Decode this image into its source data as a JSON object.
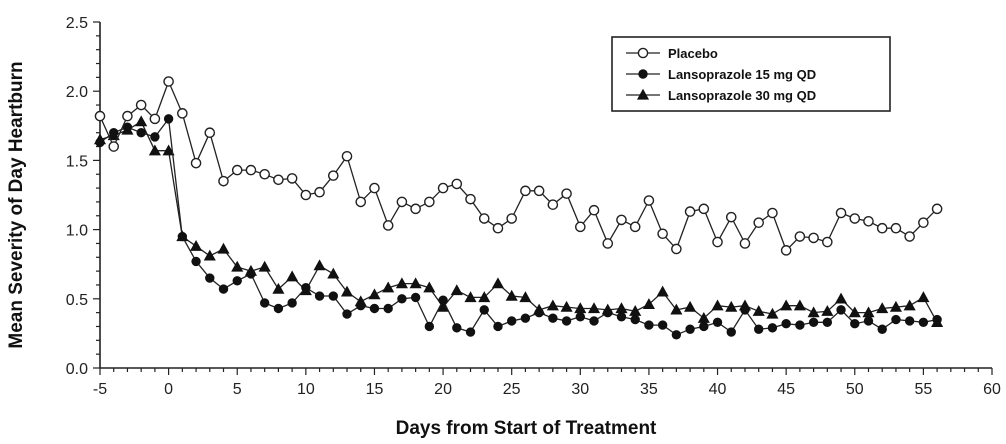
{
  "chart_data": {
    "type": "line",
    "title": "",
    "xlabel": "Days from Start of Treatment",
    "ylabel": "Mean Severity of Day Heartburn",
    "xlim": [
      -5,
      60
    ],
    "ylim": [
      0.0,
      2.5
    ],
    "xticks": [
      "-5",
      "0",
      "5",
      "10",
      "15",
      "20",
      "25",
      "30",
      "35",
      "40",
      "45",
      "50",
      "55",
      "60"
    ],
    "yticks": [
      "0.0",
      "0.5",
      "1.0",
      "1.5",
      "2.0",
      "2.5"
    ],
    "grid": false,
    "legend_position": "top-right",
    "series": [
      {
        "name": "Placebo",
        "marker": "open-circle",
        "x": [
          -5,
          -4,
          -3,
          -2,
          -1,
          0,
          1,
          2,
          3,
          4,
          5,
          6,
          7,
          8,
          9,
          10,
          11,
          12,
          13,
          14,
          15,
          16,
          17,
          18,
          19,
          20,
          21,
          22,
          23,
          24,
          25,
          26,
          27,
          28,
          29,
          30,
          31,
          32,
          33,
          34,
          35,
          36,
          37,
          38,
          39,
          40,
          41,
          42,
          43,
          44,
          45,
          46,
          47,
          48,
          49,
          50,
          51,
          52,
          53,
          54,
          55,
          56
        ],
        "y": [
          1.82,
          1.6,
          1.82,
          1.9,
          1.8,
          2.07,
          1.84,
          1.48,
          1.7,
          1.35,
          1.43,
          1.43,
          1.4,
          1.36,
          1.37,
          1.25,
          1.27,
          1.39,
          1.53,
          1.2,
          1.3,
          1.03,
          1.2,
          1.15,
          1.2,
          1.3,
          1.33,
          1.22,
          1.08,
          1.01,
          1.08,
          1.28,
          1.28,
          1.18,
          1.26,
          1.02,
          1.14,
          0.9,
          1.07,
          1.02,
          1.21,
          0.97,
          0.86,
          1.13,
          1.15,
          0.91,
          1.09,
          0.9,
          1.05,
          1.12,
          0.85,
          0.95,
          0.94,
          0.91,
          1.12,
          1.08,
          1.06,
          1.01,
          1.01,
          0.95,
          1.05,
          1.15
        ]
      },
      {
        "name": "Lansoprazole 15 mg QD",
        "marker": "filled-circle",
        "x": [
          -5,
          -4,
          -3,
          -2,
          -1,
          0,
          1,
          2,
          3,
          4,
          5,
          6,
          7,
          8,
          9,
          10,
          11,
          12,
          13,
          14,
          15,
          16,
          17,
          18,
          19,
          20,
          21,
          22,
          23,
          24,
          25,
          26,
          27,
          28,
          29,
          30,
          31,
          32,
          33,
          34,
          35,
          36,
          37,
          38,
          39,
          40,
          41,
          42,
          43,
          44,
          45,
          46,
          47,
          48,
          49,
          50,
          51,
          52,
          53,
          54,
          55,
          56
        ],
        "y": [
          1.63,
          1.7,
          1.74,
          1.7,
          1.67,
          1.8,
          0.95,
          0.77,
          0.65,
          0.57,
          0.63,
          0.68,
          0.47,
          0.43,
          0.47,
          0.58,
          0.52,
          0.52,
          0.39,
          0.45,
          0.43,
          0.43,
          0.5,
          0.51,
          0.3,
          0.49,
          0.29,
          0.26,
          0.42,
          0.3,
          0.34,
          0.36,
          0.4,
          0.36,
          0.34,
          0.37,
          0.34,
          0.4,
          0.37,
          0.35,
          0.31,
          0.31,
          0.24,
          0.28,
          0.3,
          0.33,
          0.26,
          0.42,
          0.28,
          0.29,
          0.32,
          0.31,
          0.33,
          0.33,
          0.42,
          0.32,
          0.34,
          0.28,
          0.35,
          0.34,
          0.33,
          0.35
        ]
      },
      {
        "name": "Lansoprazole 30 mg QD",
        "marker": "filled-triangle",
        "x": [
          -5,
          -4,
          -3,
          -2,
          -1,
          0,
          1,
          2,
          3,
          4,
          5,
          6,
          7,
          8,
          9,
          10,
          11,
          12,
          13,
          14,
          15,
          16,
          17,
          18,
          19,
          20,
          21,
          22,
          23,
          24,
          25,
          26,
          27,
          28,
          29,
          30,
          31,
          32,
          33,
          34,
          35,
          36,
          37,
          38,
          39,
          40,
          41,
          42,
          43,
          44,
          45,
          46,
          47,
          48,
          49,
          50,
          51,
          52,
          53,
          54,
          55,
          56
        ],
        "y": [
          1.65,
          1.68,
          1.72,
          1.78,
          1.57,
          1.57,
          0.95,
          0.88,
          0.81,
          0.86,
          0.73,
          0.7,
          0.73,
          0.57,
          0.66,
          0.56,
          0.74,
          0.68,
          0.55,
          0.48,
          0.53,
          0.58,
          0.61,
          0.61,
          0.58,
          0.44,
          0.56,
          0.51,
          0.51,
          0.61,
          0.52,
          0.51,
          0.42,
          0.45,
          0.44,
          0.43,
          0.43,
          0.42,
          0.43,
          0.41,
          0.46,
          0.55,
          0.42,
          0.44,
          0.36,
          0.45,
          0.44,
          0.45,
          0.41,
          0.39,
          0.45,
          0.45,
          0.4,
          0.41,
          0.5,
          0.4,
          0.4,
          0.43,
          0.44,
          0.45,
          0.51,
          0.33
        ]
      }
    ]
  }
}
